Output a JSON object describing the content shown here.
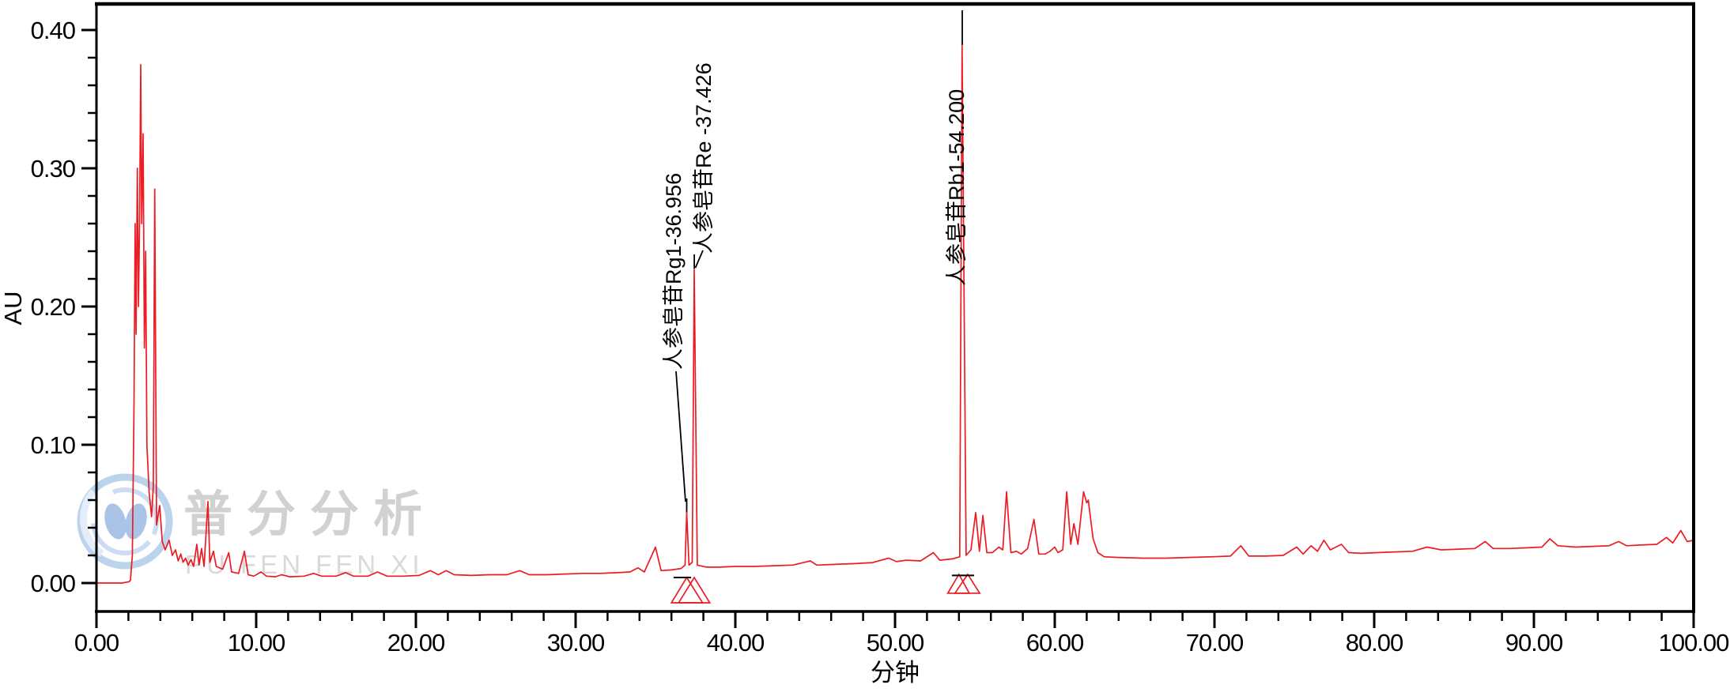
{
  "watermark": {
    "line1": "普分分析",
    "line2": "PU FEN FEN XI"
  },
  "chart_data": {
    "type": "line",
    "title": "",
    "xlabel": "分钟",
    "ylabel": "AU",
    "xlim": [
      0,
      100
    ],
    "ylim": [
      -0.021,
      0.419
    ],
    "grid": "off",
    "line_color": "#ec1c24",
    "axis_color": "#000000",
    "x_major_ticks": [
      0,
      10,
      20,
      30,
      40,
      50,
      60,
      70,
      80,
      90,
      100
    ],
    "x_tick_labels": [
      "0.00",
      "10.00",
      "20.00",
      "30.00",
      "40.00",
      "50.00",
      "60.00",
      "70.00",
      "80.00",
      "90.00",
      "100.00"
    ],
    "x_minor_step": 2,
    "y_major_ticks": [
      0,
      0.1,
      0.2,
      0.3,
      0.4
    ],
    "y_tick_labels": [
      "0.00",
      "0.10",
      "0.20",
      "0.30",
      "0.40"
    ],
    "y_minor_step": 0.02,
    "peak_annotations": [
      {
        "label": "人参皂苷Rg1-36.956",
        "compound": "人参皂苷Rg1",
        "rt": 36.956,
        "apex_au": 0.051
      },
      {
        "label": "人参皂苷Re -37.426",
        "compound": "人参皂苷Re",
        "rt": 37.426,
        "apex_au": 0.227
      },
      {
        "label": "人参皂苷Rb1-54.200",
        "compound": "人参皂苷Rb1",
        "rt": 54.2,
        "apex_au": 0.389
      }
    ],
    "integration_markers": [
      {
        "t_start": 36.0,
        "t_apex": 36.956,
        "t_end": 37.95,
        "base_au": -0.0143,
        "tip_au": 0.004
      },
      {
        "t_start": 36.45,
        "t_apex": 37.426,
        "t_end": 38.4,
        "base_au": -0.0143,
        "tip_au": 0.004
      },
      {
        "t_start": 53.3,
        "t_apex": 54.0,
        "t_end": 54.65,
        "base_au": -0.0074,
        "tip_au": 0.0063
      },
      {
        "t_start": 53.75,
        "t_apex": 54.55,
        "t_end": 55.3,
        "base_au": -0.0074,
        "tip_au": 0.0063
      }
    ],
    "baseline_marks": [
      {
        "t0": 36.13,
        "t1": 37.23,
        "au": 0.004
      },
      {
        "t0": 53.56,
        "t1": 54.95,
        "au": 0.0055
      }
    ],
    "series": [
      {
        "name": "chromatogram",
        "points": [
          [
            0,
            0
          ],
          [
            1.6,
            0
          ],
          [
            2.05,
            0.001
          ],
          [
            2.13,
            0.002
          ],
          [
            2.25,
            0.02
          ],
          [
            2.35,
            0.13
          ],
          [
            2.42,
            0.26
          ],
          [
            2.48,
            0.18
          ],
          [
            2.56,
            0.3
          ],
          [
            2.63,
            0.2
          ],
          [
            2.7,
            0.26
          ],
          [
            2.77,
            0.375
          ],
          [
            2.83,
            0.26
          ],
          [
            2.92,
            0.325
          ],
          [
            3.0,
            0.17
          ],
          [
            3.08,
            0.24
          ],
          [
            3.16,
            0.1
          ],
          [
            3.3,
            0.065
          ],
          [
            3.45,
            0.048
          ],
          [
            3.56,
            0.07
          ],
          [
            3.65,
            0.285
          ],
          [
            3.76,
            0.042
          ],
          [
            3.96,
            0.056
          ],
          [
            4.12,
            0.03
          ],
          [
            4.3,
            0.024
          ],
          [
            4.55,
            0.031
          ],
          [
            4.75,
            0.02
          ],
          [
            4.95,
            0.024
          ],
          [
            5.12,
            0.016
          ],
          [
            5.28,
            0.021
          ],
          [
            5.42,
            0.015
          ],
          [
            5.58,
            0.018
          ],
          [
            5.74,
            0.013
          ],
          [
            5.92,
            0.017
          ],
          [
            6.08,
            0.012
          ],
          [
            6.28,
            0.028
          ],
          [
            6.42,
            0.013
          ],
          [
            6.58,
            0.025
          ],
          [
            6.74,
            0.012
          ],
          [
            6.98,
            0.059
          ],
          [
            7.1,
            0.015
          ],
          [
            7.32,
            0.023
          ],
          [
            7.5,
            0.012
          ],
          [
            7.9,
            0.01
          ],
          [
            8.28,
            0.022
          ],
          [
            8.46,
            0.008
          ],
          [
            8.9,
            0.007
          ],
          [
            9.26,
            0.023
          ],
          [
            9.5,
            0.006
          ],
          [
            9.85,
            0.005
          ],
          [
            10.3,
            0.008
          ],
          [
            10.65,
            0.005
          ],
          [
            11.2,
            0.0045
          ],
          [
            11.6,
            0.006
          ],
          [
            12.1,
            0.0045
          ],
          [
            13,
            0.005
          ],
          [
            13.6,
            0.007
          ],
          [
            14.1,
            0.005
          ],
          [
            15,
            0.005
          ],
          [
            15.6,
            0.0075
          ],
          [
            16.1,
            0.005
          ],
          [
            17,
            0.005
          ],
          [
            17.6,
            0.008
          ],
          [
            18.2,
            0.005
          ],
          [
            19.2,
            0.005
          ],
          [
            20.2,
            0.0055
          ],
          [
            20.9,
            0.009
          ],
          [
            21.4,
            0.006
          ],
          [
            21.9,
            0.009
          ],
          [
            22.4,
            0.006
          ],
          [
            23.5,
            0.0055
          ],
          [
            24.6,
            0.006
          ],
          [
            25.7,
            0.006
          ],
          [
            26.5,
            0.009
          ],
          [
            27.1,
            0.006
          ],
          [
            28.2,
            0.006
          ],
          [
            29.3,
            0.0065
          ],
          [
            30.4,
            0.007
          ],
          [
            31.5,
            0.007
          ],
          [
            32.6,
            0.0075
          ],
          [
            33.4,
            0.008
          ],
          [
            33.9,
            0.011
          ],
          [
            34.3,
            0.008
          ],
          [
            35.0,
            0.026
          ],
          [
            35.35,
            0.009
          ],
          [
            36.0,
            0.0095
          ],
          [
            36.6,
            0.0105
          ],
          [
            36.85,
            0.013
          ],
          [
            36.956,
            0.051
          ],
          [
            37.1,
            0.013
          ],
          [
            37.3,
            0.015
          ],
          [
            37.426,
            0.227
          ],
          [
            37.62,
            0.013
          ],
          [
            38.2,
            0.0115
          ],
          [
            39,
            0.0115
          ],
          [
            40,
            0.012
          ],
          [
            41.2,
            0.012
          ],
          [
            42.4,
            0.0125
          ],
          [
            43.6,
            0.013
          ],
          [
            44.7,
            0.016
          ],
          [
            45.1,
            0.013
          ],
          [
            46.2,
            0.0135
          ],
          [
            47.4,
            0.014
          ],
          [
            48.6,
            0.0148
          ],
          [
            49.6,
            0.018
          ],
          [
            50.1,
            0.0155
          ],
          [
            50.7,
            0.0165
          ],
          [
            51.6,
            0.016
          ],
          [
            52.4,
            0.022
          ],
          [
            52.8,
            0.0165
          ],
          [
            53.6,
            0.0175
          ],
          [
            54.05,
            0.019
          ],
          [
            54.2,
            0.389
          ],
          [
            54.45,
            0.02
          ],
          [
            54.75,
            0.024
          ],
          [
            55.05,
            0.051
          ],
          [
            55.28,
            0.023
          ],
          [
            55.5,
            0.049
          ],
          [
            55.75,
            0.022
          ],
          [
            56.1,
            0.022
          ],
          [
            56.5,
            0.026
          ],
          [
            56.75,
            0.024
          ],
          [
            56.98,
            0.066
          ],
          [
            57.25,
            0.022
          ],
          [
            57.6,
            0.023
          ],
          [
            57.9,
            0.021
          ],
          [
            58.3,
            0.025
          ],
          [
            58.7,
            0.046
          ],
          [
            59.0,
            0.021
          ],
          [
            59.4,
            0.021
          ],
          [
            59.7,
            0.023
          ],
          [
            60.0,
            0.026
          ],
          [
            60.2,
            0.022
          ],
          [
            60.5,
            0.024
          ],
          [
            60.75,
            0.066
          ],
          [
            61.0,
            0.028
          ],
          [
            61.2,
            0.043
          ],
          [
            61.45,
            0.028
          ],
          [
            61.8,
            0.066
          ],
          [
            62.0,
            0.058
          ],
          [
            62.1,
            0.06
          ],
          [
            62.4,
            0.032
          ],
          [
            62.7,
            0.022
          ],
          [
            63.1,
            0.019
          ],
          [
            64,
            0.0185
          ],
          [
            65.5,
            0.018
          ],
          [
            67,
            0.018
          ],
          [
            68.4,
            0.0185
          ],
          [
            69.8,
            0.019
          ],
          [
            71,
            0.0195
          ],
          [
            71.65,
            0.027
          ],
          [
            72.15,
            0.0195
          ],
          [
            73.2,
            0.0195
          ],
          [
            74.3,
            0.02
          ],
          [
            75.15,
            0.026
          ],
          [
            75.55,
            0.021
          ],
          [
            76.05,
            0.027
          ],
          [
            76.45,
            0.023
          ],
          [
            76.85,
            0.031
          ],
          [
            77.25,
            0.024
          ],
          [
            77.95,
            0.028
          ],
          [
            78.4,
            0.022
          ],
          [
            79.2,
            0.0215
          ],
          [
            80.2,
            0.022
          ],
          [
            81.3,
            0.0225
          ],
          [
            82.4,
            0.023
          ],
          [
            83.3,
            0.026
          ],
          [
            84.2,
            0.024
          ],
          [
            85.3,
            0.0245
          ],
          [
            86.3,
            0.025
          ],
          [
            86.95,
            0.03
          ],
          [
            87.45,
            0.025
          ],
          [
            88.5,
            0.025
          ],
          [
            89.6,
            0.0255
          ],
          [
            90.5,
            0.026
          ],
          [
            91.0,
            0.032
          ],
          [
            91.5,
            0.027
          ],
          [
            92.6,
            0.026
          ],
          [
            93.7,
            0.0265
          ],
          [
            94.7,
            0.027
          ],
          [
            95.3,
            0.03
          ],
          [
            95.8,
            0.027
          ],
          [
            96.7,
            0.0275
          ],
          [
            97.7,
            0.028
          ],
          [
            98.3,
            0.033
          ],
          [
            98.7,
            0.029
          ],
          [
            99.2,
            0.038
          ],
          [
            99.6,
            0.03
          ],
          [
            100,
            0.031
          ]
        ]
      }
    ]
  }
}
